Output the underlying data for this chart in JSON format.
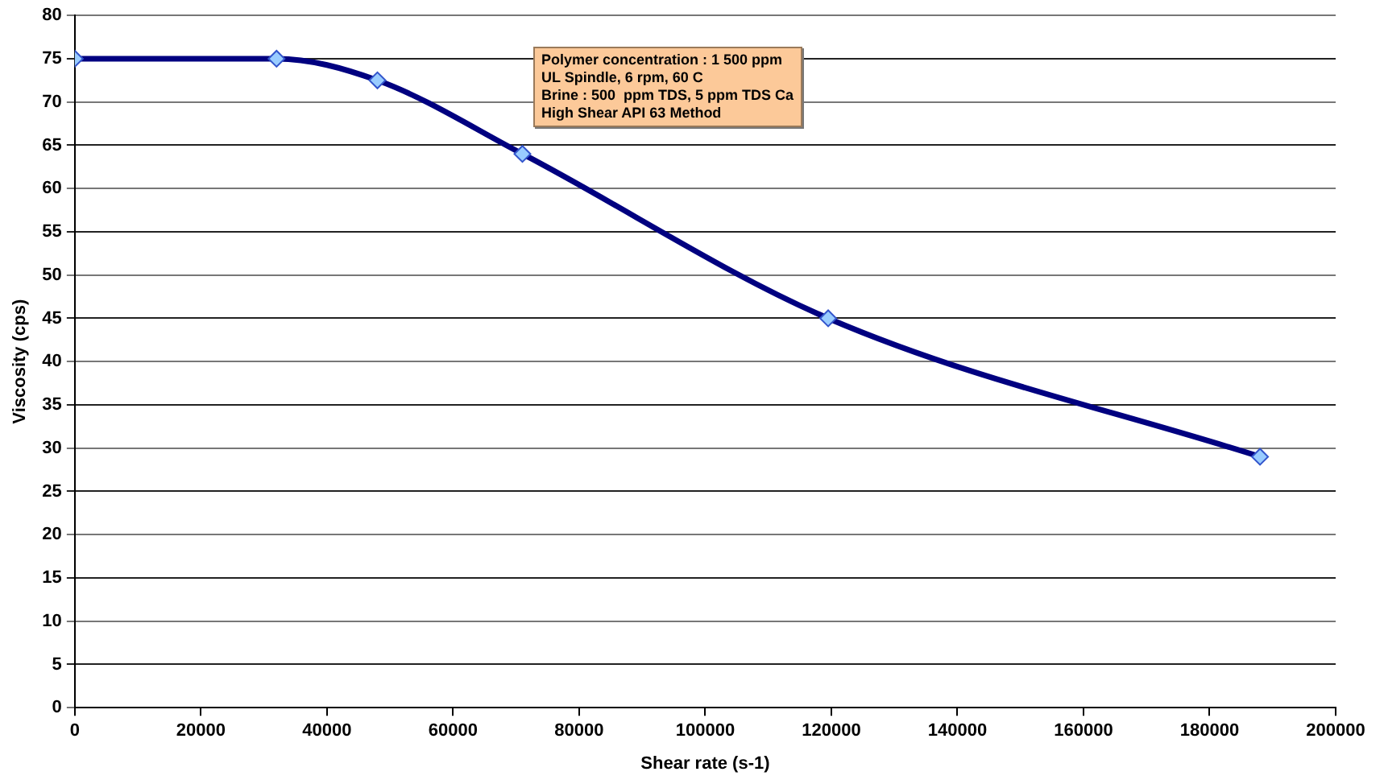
{
  "chart_data": {
    "type": "line",
    "xlabel": "Shear rate (s-1)",
    "ylabel": "Viscosity (cps)",
    "x": [
      0,
      32000,
      48000,
      71000,
      119500,
      188000
    ],
    "series": [
      {
        "color": "#000080",
        "values": [
          75,
          75,
          72.5,
          64,
          45,
          29
        ]
      }
    ],
    "xlim": [
      0,
      200000
    ],
    "xticks": [
      0,
      20000,
      40000,
      60000,
      80000,
      100000,
      120000,
      140000,
      160000,
      180000,
      200000
    ],
    "ylim": [
      0,
      80
    ],
    "yticks": [
      0,
      5,
      10,
      15,
      20,
      25,
      30,
      35,
      40,
      45,
      50,
      55,
      60,
      65,
      70,
      75,
      80
    ],
    "grid": "y",
    "legend": false,
    "marker": "diamond",
    "line_style": "solid",
    "annotations": [
      "Polymer concentration : 1 500 ppm",
      "UL Spindle, 6 rpm, 60 C",
      "Brine : 500  ppm TDS, 5 ppm TDS Ca",
      "High Shear API 63 Method"
    ]
  }
}
